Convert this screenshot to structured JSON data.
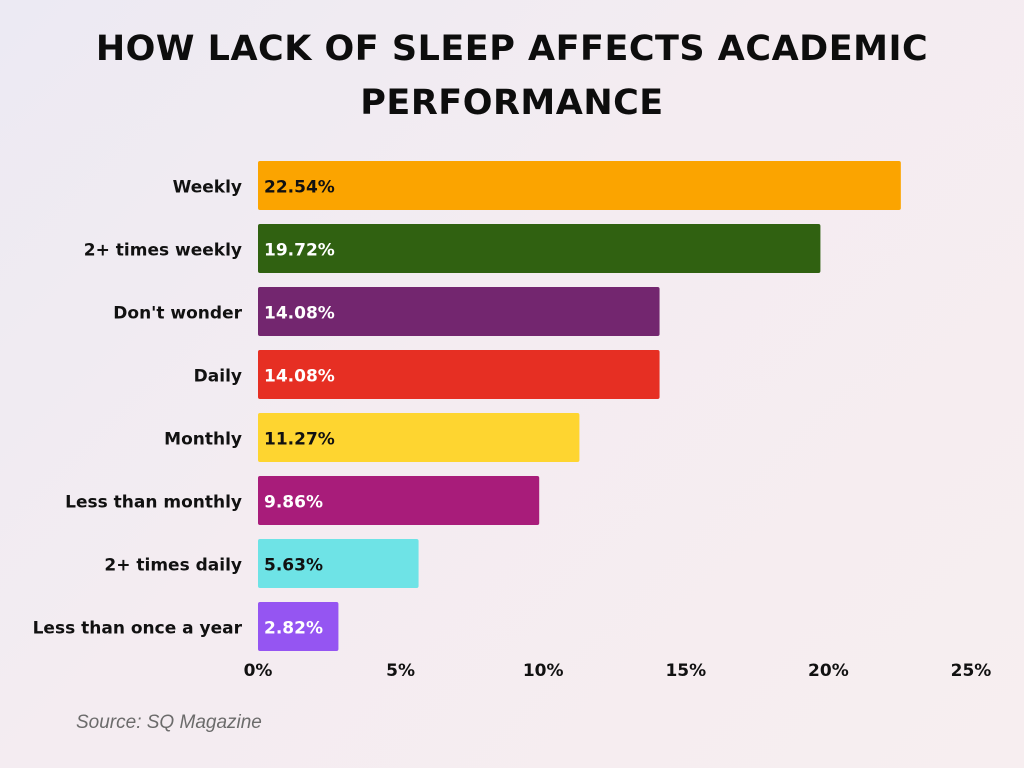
{
  "page": {
    "title": "HOW LACK OF SLEEP AFFECTS ACADEMIC PERFORMANCE",
    "source": "Source: SQ Magazine"
  },
  "chart_data": {
    "type": "bar",
    "orientation": "horizontal",
    "title": "HOW LACK OF SLEEP AFFECTS ACADEMIC PERFORMANCE",
    "xlabel": "",
    "ylabel": "",
    "xlim": [
      0,
      25
    ],
    "x_ticks": [
      0,
      5,
      10,
      15,
      20,
      25
    ],
    "x_tick_labels": [
      "0%",
      "5%",
      "10%",
      "15%",
      "20%",
      "25%"
    ],
    "grid": false,
    "categories": [
      "Weekly",
      "2+ times weekly",
      "Don't wonder",
      "Daily",
      "Monthly",
      "Less than monthly",
      "2+ times daily",
      "Less than once a year"
    ],
    "values": [
      22.54,
      19.72,
      14.08,
      14.08,
      11.27,
      9.86,
      5.63,
      2.82
    ],
    "value_labels": [
      "22.54%",
      "19.72%",
      "14.08%",
      "14.08%",
      "11.27%",
      "9.86%",
      "5.63%",
      "2.82%"
    ],
    "colors": [
      "#fba400",
      "#306111",
      "#73266f",
      "#e62f23",
      "#fed530",
      "#a81c7a",
      "#6ee3e6",
      "#9555f2"
    ],
    "label_colors": [
      "#111111",
      "#ffffff",
      "#ffffff",
      "#ffffff",
      "#111111",
      "#ffffff",
      "#111111",
      "#ffffff"
    ]
  }
}
